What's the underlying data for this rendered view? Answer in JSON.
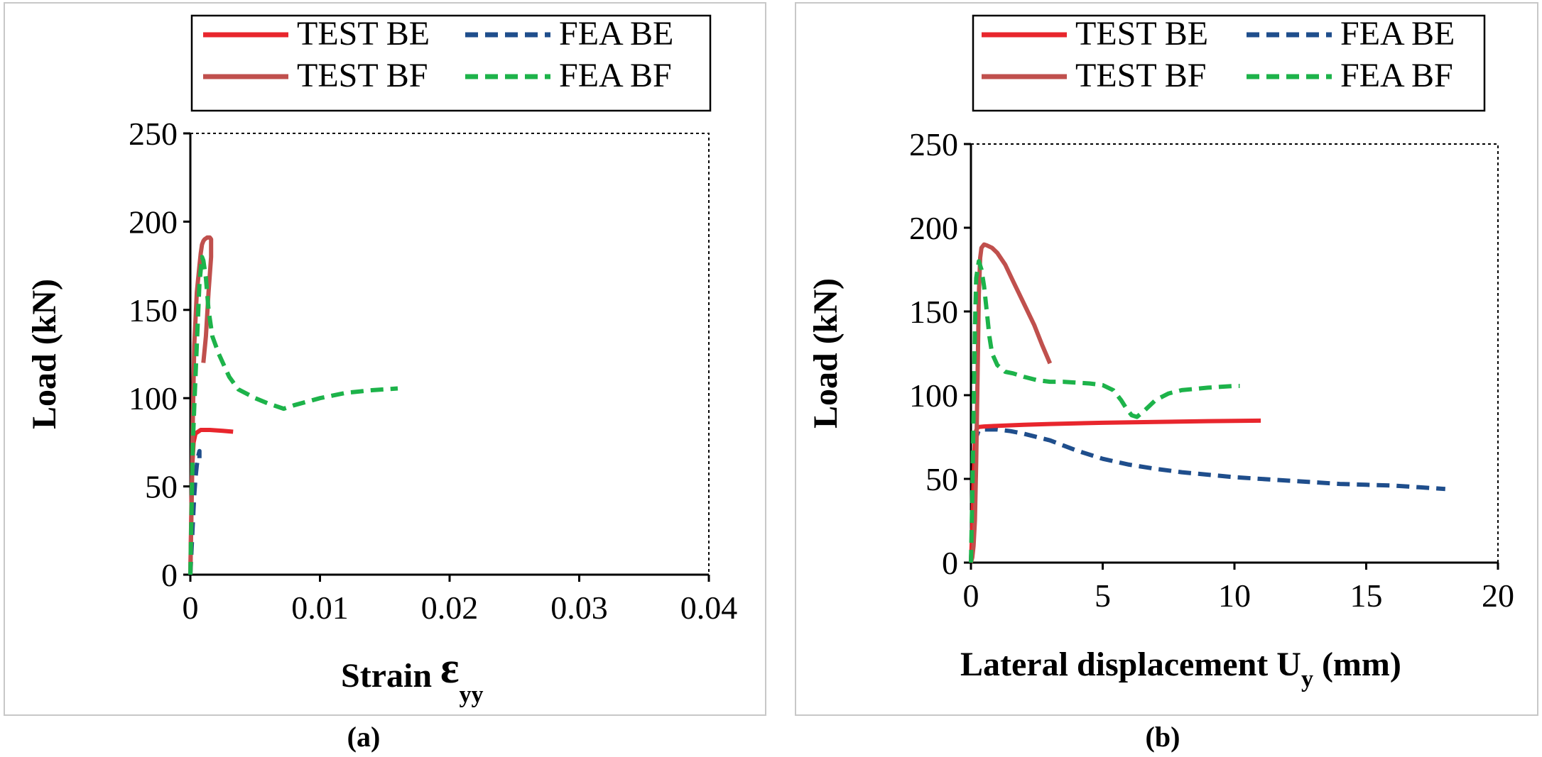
{
  "series_styles": {
    "TEST BE": {
      "color": "#e8262d",
      "dash": "solid"
    },
    "TEST BF": {
      "color": "#c0504d",
      "dash": "solid"
    },
    "FEA BE": {
      "color": "#1f4e8c",
      "dash": "dashed"
    },
    "FEA BF": {
      "color": "#1db34a",
      "dash": "dashed"
    }
  },
  "chart_data": [
    {
      "type": "line",
      "panel_label": "(a)",
      "xlabel_main": "Strain ",
      "xlabel_symbol": "ε",
      "xlabel_sub": "yy",
      "ylabel": "Load (kN)",
      "xlim": [
        0,
        0.04
      ],
      "ylim": [
        0,
        250
      ],
      "x_ticks": [
        0,
        0.01,
        0.02,
        0.03,
        0.04
      ],
      "x_tick_labels": [
        "0",
        "0.01",
        "0.02",
        "0.03",
        "0.04"
      ],
      "y_ticks": [
        0,
        50,
        100,
        150,
        200,
        250
      ],
      "y_tick_labels": [
        "0",
        "50",
        "100",
        "150",
        "200",
        "250"
      ],
      "legend": [
        "TEST BE",
        "FEA BE",
        "TEST BF",
        "FEA BF"
      ],
      "series": [
        {
          "name": "FEA BE",
          "x": [
            0,
            0.0001,
            0.0002,
            0.0003,
            0.0004,
            0.0005,
            0.0006,
            0.0007,
            0.0007
          ],
          "y": [
            0,
            15,
            30,
            45,
            55,
            62,
            67,
            70,
            66
          ]
        },
        {
          "name": "TEST BE",
          "x": [
            0,
            8e-05,
            0.00015,
            0.00025,
            0.0004,
            0.0006,
            0.0008,
            0.0015,
            0.0025,
            0.0033
          ],
          "y": [
            0,
            40,
            62,
            75,
            80,
            81,
            82,
            82,
            81.5,
            81
          ]
        },
        {
          "name": "TEST BF",
          "x": [
            0,
            0.0001,
            0.0002,
            0.0003,
            0.0005,
            0.0007,
            0.0008,
            0.0009,
            0.001,
            0.0011,
            0.0013,
            0.0015,
            0.0016,
            0.0016,
            0.0014,
            0.0012,
            0.001
          ],
          "y": [
            0,
            40,
            90,
            130,
            160,
            175,
            182,
            187,
            189,
            190,
            191,
            191,
            190,
            180,
            160,
            135,
            120
          ]
        },
        {
          "name": "FEA BF",
          "x": [
            0,
            0.0001,
            0.0002,
            0.0003,
            0.0005,
            0.0007,
            0.0009,
            0.001,
            0.0012,
            0.0014,
            0.0017,
            0.0022,
            0.003,
            0.0037,
            0.005,
            0.006,
            0.0068,
            0.0072,
            0.008,
            0.01,
            0.012,
            0.014,
            0.016
          ],
          "y": [
            0,
            40,
            75,
            95,
            130,
            165,
            180,
            178,
            168,
            150,
            135,
            125,
            112,
            105,
            100,
            97,
            95,
            94,
            96,
            100,
            103,
            104.5,
            105.5
          ]
        }
      ]
    },
    {
      "type": "line",
      "panel_label": "(b)",
      "xlabel_main": "Lateral displacement U",
      "xlabel_symbol": "",
      "xlabel_sub": "y",
      "xlabel_after": " (mm)",
      "ylabel": "Load (kN)",
      "xlim": [
        0,
        20
      ],
      "ylim": [
        0,
        250
      ],
      "x_ticks": [
        0,
        5,
        10,
        15,
        20
      ],
      "x_tick_labels": [
        "0",
        "5",
        "10",
        "15",
        "20"
      ],
      "y_ticks": [
        0,
        50,
        100,
        150,
        200,
        250
      ],
      "y_tick_labels": [
        "0",
        "50",
        "100",
        "150",
        "200",
        "250"
      ],
      "legend": [
        "TEST BE",
        "FEA BE",
        "TEST BF",
        "FEA BF"
      ],
      "series": [
        {
          "name": "FEA BE",
          "x": [
            0,
            0.05,
            0.1,
            0.15,
            0.2,
            0.3,
            0.5,
            1,
            1.5,
            2,
            2.5,
            3,
            4,
            5,
            6,
            7,
            8,
            9,
            10,
            11,
            12,
            13,
            14,
            15,
            16,
            17,
            18
          ],
          "y": [
            0,
            20,
            45,
            65,
            75,
            79,
            79.5,
            79.5,
            78.5,
            77,
            75,
            73,
            67,
            62,
            58.5,
            56,
            54,
            52.5,
            51,
            50,
            49,
            48,
            47,
            46.5,
            46,
            45,
            44
          ]
        },
        {
          "name": "TEST BE",
          "x": [
            0,
            0.05,
            0.1,
            0.15,
            0.2,
            0.25,
            0.3,
            0.5,
            1,
            2,
            3,
            5,
            7,
            9,
            11
          ],
          "y": [
            0,
            20,
            50,
            72,
            79,
            80.5,
            81,
            81.3,
            81.7,
            82.3,
            82.8,
            83.5,
            84,
            84.5,
            84.8
          ]
        },
        {
          "name": "TEST BF",
          "x": [
            0,
            0.05,
            0.1,
            0.15,
            0.2,
            0.25,
            0.3,
            0.35,
            0.4,
            0.5,
            0.6,
            0.8,
            1,
            1.3,
            1.6,
            2,
            2.4,
            2.7,
            3
          ],
          "y": [
            0,
            3,
            10,
            25,
            60,
            110,
            160,
            182,
            188,
            190,
            189.5,
            188,
            185,
            178,
            168,
            155,
            142,
            130,
            119
          ]
        },
        {
          "name": "FEA BF",
          "x": [
            0,
            0.05,
            0.1,
            0.15,
            0.2,
            0.3,
            0.4,
            0.5,
            0.6,
            0.7,
            0.8,
            1,
            1.3,
            1.6,
            2,
            2.5,
            3,
            3.5,
            4,
            4.5,
            5,
            5.4,
            5.7,
            5.9,
            6.1,
            6.3,
            6.6,
            7,
            7.5,
            8,
            9,
            10,
            10.2
          ],
          "y": [
            0,
            40,
            90,
            140,
            170,
            180,
            175,
            165,
            150,
            135,
            125,
            118,
            114,
            113,
            111,
            109,
            108,
            108,
            107.5,
            107,
            106,
            103,
            97,
            92,
            88,
            87,
            91,
            97,
            101,
            103,
            104.5,
            105.5,
            105.5
          ]
        }
      ]
    }
  ]
}
